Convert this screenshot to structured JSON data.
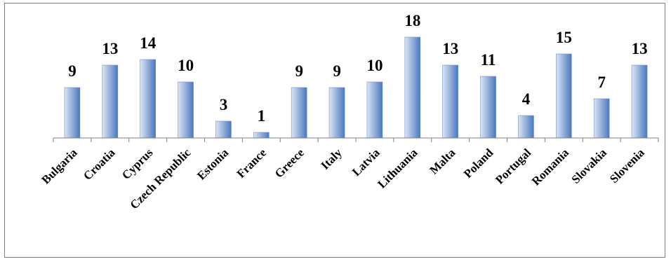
{
  "chart_data": {
    "type": "bar",
    "categories": [
      "Bulgaria",
      "Croatia",
      "Cyprus",
      "Czech Republic",
      "Estonia",
      "France",
      "Greece",
      "Italy",
      "Latvia",
      "Lithuania",
      "Malta",
      "Poland",
      "Portugal",
      "Romania",
      "Slovakia",
      "Slovenia"
    ],
    "values": [
      9,
      13,
      14,
      10,
      3,
      1,
      9,
      9,
      10,
      18,
      13,
      11,
      4,
      15,
      7,
      13
    ],
    "title": "",
    "xlabel": "",
    "ylabel": "",
    "ylim": [
      0,
      18
    ],
    "grid": false,
    "legend": "none",
    "data_labels": true,
    "colors": {
      "bar_light": "#dbe6f5",
      "bar_dark": "#4a77c0",
      "axis": "#7f7f7f",
      "text": "#000000"
    }
  }
}
